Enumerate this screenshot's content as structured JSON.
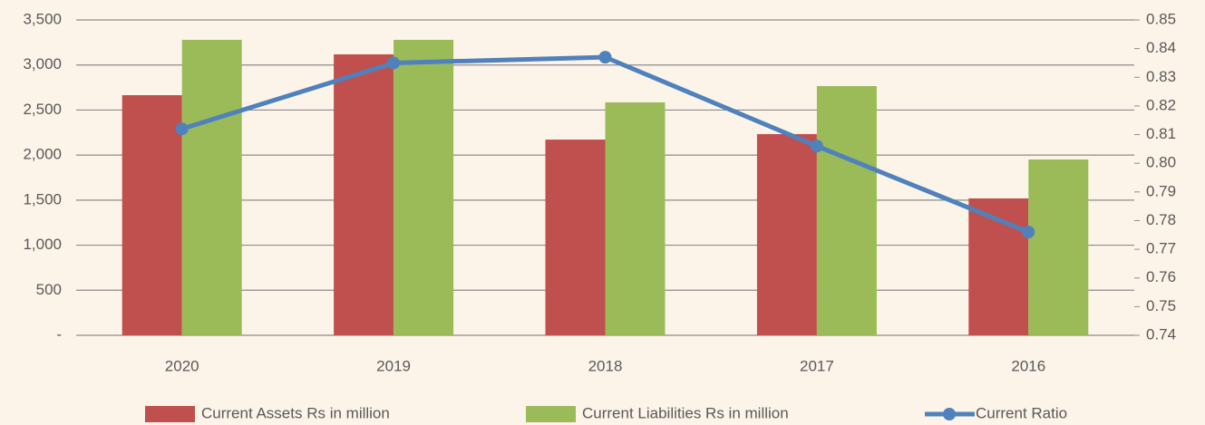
{
  "chart_data": {
    "type": "bar",
    "categories": [
      "2020",
      "2019",
      "2018",
      "2017",
      "2016"
    ],
    "series": [
      {
        "name": "Current Assets Rs in million",
        "color": "#c0504d",
        "values": [
          2665,
          3118,
          2172,
          2233,
          1519
        ]
      },
      {
        "name": "Current Liabilities Rs in million",
        "color": "#9bbb59",
        "values": [
          3279,
          3279,
          2585,
          2766,
          1951
        ]
      },
      {
        "name": "Current Ratio",
        "color": "#4f81bd",
        "type": "line",
        "axis": "y2",
        "values": [
          0.812,
          0.835,
          0.837,
          0.806,
          0.776
        ]
      }
    ],
    "ylim": [
      0,
      3500
    ],
    "yticks": [
      {
        "value": 0,
        "label": "-"
      },
      500,
      {
        "value": 1000,
        "label": "1,000"
      },
      {
        "value": 1500,
        "label": "1,500"
      },
      {
        "value": 2000,
        "label": "2,000"
      },
      {
        "value": 2500,
        "label": "2,500"
      },
      {
        "value": 3000,
        "label": "3,000"
      },
      {
        "value": 3500,
        "label": "3,500"
      }
    ],
    "y2lim": [
      0.74,
      0.85
    ],
    "y2ticks": [
      0.74,
      0.75,
      0.76,
      0.77,
      0.78,
      0.79,
      {
        "value": 0.8,
        "label": "0.80"
      },
      0.81,
      0.82,
      0.83,
      0.84,
      0.85
    ],
    "grid": true,
    "legend": "bottom"
  }
}
